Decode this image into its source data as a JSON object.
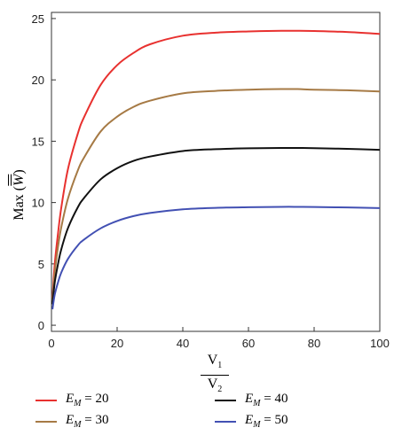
{
  "chart_data": {
    "type": "line",
    "xlabel": {
      "numerator": "V",
      "numerator_sub": "1",
      "denominator": "V",
      "denominator_sub": "2"
    },
    "ylabel": {
      "prefix": "Max (",
      "symbol": "W",
      "suffix": ")"
    },
    "xlim": [
      0,
      100
    ],
    "ylim": [
      -0.5,
      25.5
    ],
    "xticks": [
      "0",
      "20",
      "40",
      "60",
      "80",
      "100"
    ],
    "yticks": [
      "0",
      "5",
      "10",
      "15",
      "20",
      "25"
    ],
    "legend_position": "bottom",
    "series": [
      {
        "name": "20",
        "legend_symbol": "E",
        "legend_sub": "M",
        "color": "#e8312f",
        "x": [
          0.3,
          1,
          2,
          3,
          5,
          8,
          10,
          15,
          20,
          25,
          30,
          40,
          50,
          60,
          70,
          75,
          80,
          90,
          100
        ],
        "y": [
          2.2,
          5.0,
          7.5,
          9.6,
          12.7,
          15.6,
          17.0,
          19.6,
          21.2,
          22.2,
          22.9,
          23.6,
          23.85,
          23.95,
          24.0,
          24.0,
          23.98,
          23.9,
          23.75
        ]
      },
      {
        "name": "30",
        "legend_symbol": "E",
        "legend_sub": "M",
        "color": "#a67a45",
        "x": [
          0.3,
          1,
          2,
          3,
          5,
          8,
          10,
          15,
          20,
          25,
          30,
          40,
          50,
          60,
          70,
          75,
          80,
          90,
          100
        ],
        "y": [
          2.0,
          4.3,
          6.4,
          8.0,
          10.3,
          12.6,
          13.7,
          15.8,
          17.0,
          17.8,
          18.3,
          18.9,
          19.1,
          19.2,
          19.25,
          19.25,
          19.2,
          19.15,
          19.05
        ]
      },
      {
        "name": "40",
        "legend_symbol": "E",
        "legend_sub": "M",
        "color": "#111111",
        "x": [
          0.3,
          1,
          2,
          3,
          5,
          8,
          10,
          15,
          20,
          25,
          30,
          40,
          50,
          60,
          70,
          75,
          80,
          90,
          100
        ],
        "y": [
          1.7,
          3.5,
          5.0,
          6.2,
          7.9,
          9.6,
          10.4,
          11.9,
          12.8,
          13.4,
          13.75,
          14.2,
          14.35,
          14.42,
          14.45,
          14.45,
          14.43,
          14.38,
          14.3
        ]
      },
      {
        "name": "50",
        "legend_symbol": "E",
        "legend_sub": "M",
        "color": "#4250b3",
        "x": [
          0.3,
          1,
          2,
          3,
          5,
          8,
          10,
          15,
          20,
          25,
          30,
          40,
          50,
          60,
          70,
          75,
          80,
          90,
          100
        ],
        "y": [
          1.3,
          2.5,
          3.5,
          4.3,
          5.4,
          6.5,
          7.0,
          7.9,
          8.5,
          8.9,
          9.15,
          9.45,
          9.57,
          9.62,
          9.65,
          9.65,
          9.64,
          9.6,
          9.55
        ]
      }
    ]
  }
}
